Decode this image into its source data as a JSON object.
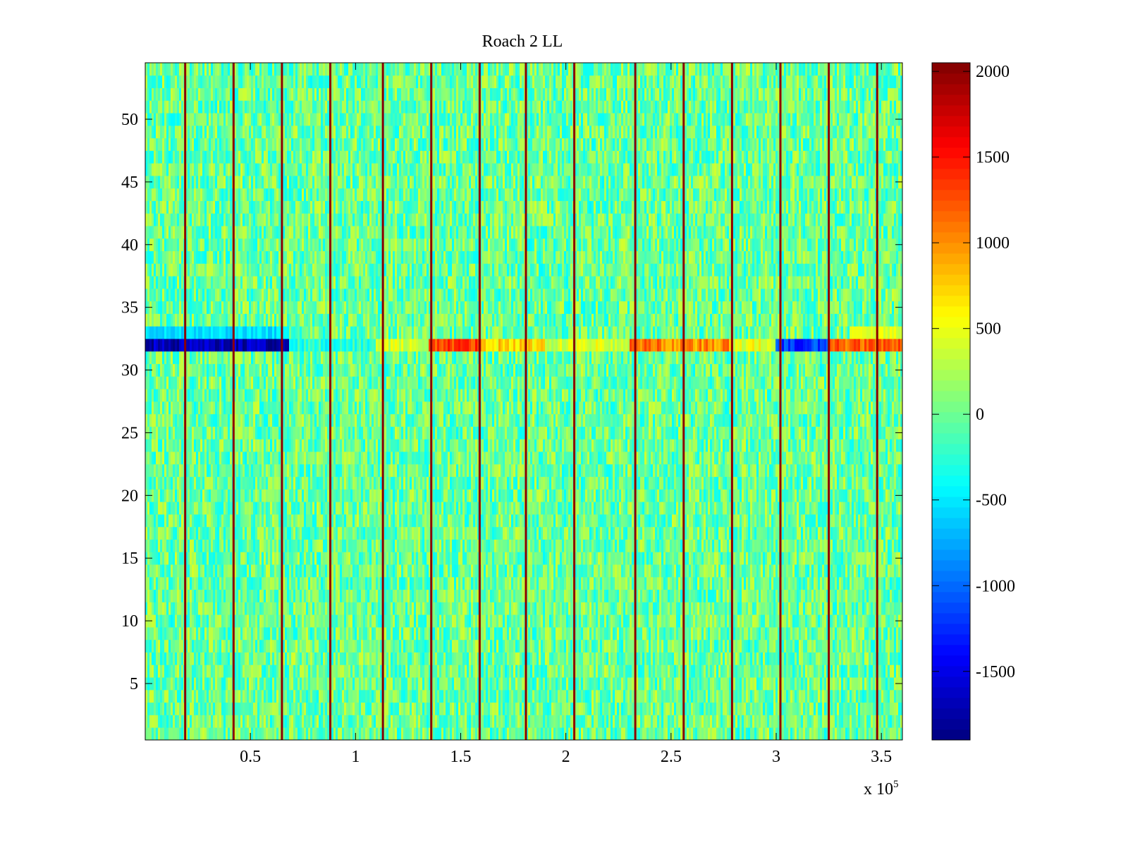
{
  "chart_data": {
    "type": "heatmap",
    "title": "Roach 2 LL",
    "xlabel": "",
    "ylabel": "",
    "x_exponent_label": "x 10",
    "x_exponent_power": "5",
    "xlim": [
      0,
      3.6
    ],
    "ylim": [
      0.5,
      54.5
    ],
    "x_ticks": [
      0.5,
      1,
      1.5,
      2,
      2.5,
      3,
      3.5
    ],
    "x_tick_labels": [
      "0.5",
      "1",
      "1.5",
      "2",
      "2.5",
      "3",
      "3.5"
    ],
    "y_ticks": [
      5,
      10,
      15,
      20,
      25,
      30,
      35,
      40,
      45,
      50
    ],
    "y_tick_labels": [
      "5",
      "10",
      "15",
      "20",
      "25",
      "30",
      "35",
      "40",
      "45",
      "50"
    ],
    "rows": 54,
    "colorbar": {
      "colormap": "jet",
      "range": [
        -1900,
        2050
      ],
      "ticks": [
        -1500,
        -1000,
        -500,
        0,
        500,
        1000,
        1500,
        2000
      ],
      "tick_labels": [
        "-1500",
        "-1000",
        "-500",
        "0",
        "500",
        "1000",
        "1500",
        "2000"
      ]
    },
    "background_value_range": [
      -450,
      450
    ],
    "spike_columns_x": [
      0.19,
      0.42,
      0.65,
      0.88,
      1.13,
      1.36,
      1.59,
      1.81,
      2.04,
      2.33,
      2.56,
      2.79,
      3.02,
      3.25,
      3.48
    ],
    "spike_value": 2000,
    "anomaly_row": {
      "row": 32,
      "segments": [
        {
          "x_start": 0.0,
          "x_end": 0.68,
          "value": -1700
        },
        {
          "x_start": 0.68,
          "x_end": 1.1,
          "value": -300
        },
        {
          "x_start": 1.1,
          "x_end": 1.35,
          "value": 400
        },
        {
          "x_start": 1.35,
          "x_end": 1.6,
          "value": 1300
        },
        {
          "x_start": 1.6,
          "x_end": 1.9,
          "value": 700
        },
        {
          "x_start": 1.9,
          "x_end": 2.3,
          "value": 400
        },
        {
          "x_start": 2.3,
          "x_end": 2.45,
          "value": 1100
        },
        {
          "x_start": 2.45,
          "x_end": 2.8,
          "value": 1000
        },
        {
          "x_start": 2.8,
          "x_end": 3.0,
          "value": 500
        },
        {
          "x_start": 3.0,
          "x_end": 3.25,
          "value": -1200
        },
        {
          "x_start": 3.25,
          "x_end": 3.6,
          "value": 1200
        }
      ]
    },
    "neighbor_rows": [
      {
        "row": 33,
        "x_start": 0.0,
        "x_end": 0.68,
        "value": -550
      },
      {
        "row": 33,
        "x_start": 3.35,
        "x_end": 3.6,
        "value": 450
      }
    ]
  }
}
